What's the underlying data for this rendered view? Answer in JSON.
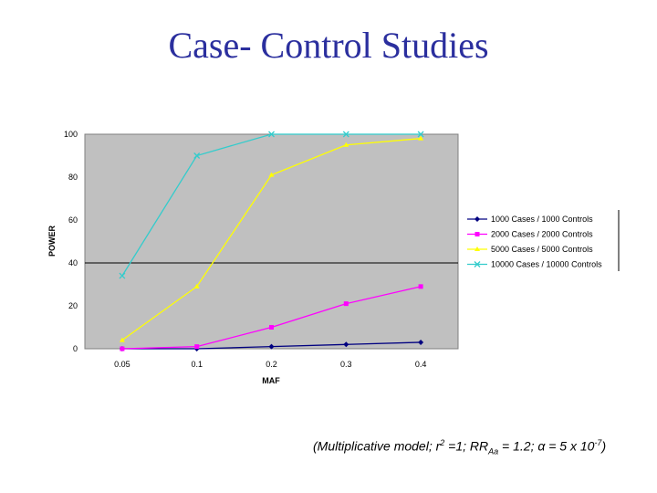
{
  "slide": {
    "title": "Case- Control Studies"
  },
  "footnote": {
    "prefix": "(Multiplicative model; r",
    "r_exp": "2",
    "mid": " =1; RR",
    "rr_sub": "Aa",
    "rest": " = 1.2; α = 5 x 10",
    "alpha_exp": "-7",
    "suffix": ")"
  },
  "chart_data": {
    "type": "line",
    "title": "",
    "xlabel": "MAF",
    "ylabel": "POWER",
    "categories": [
      "0.05",
      "0.1",
      "0.2",
      "0.3",
      "0.4"
    ],
    "ylim": [
      0,
      100
    ],
    "yticks": [
      0,
      20,
      40,
      60,
      80,
      100
    ],
    "grid": "horizontal at 40",
    "plot_background": "#c0c0c0",
    "legend_position": "right",
    "series": [
      {
        "name": "1000 Cases / 1000 Controls",
        "values": [
          0,
          0,
          1,
          2,
          3
        ],
        "color": "#000080",
        "marker": "diamond"
      },
      {
        "name": "2000 Cases / 2000 Controls",
        "values": [
          0,
          1,
          10,
          21,
          29
        ],
        "color": "#ff00ff",
        "marker": "square"
      },
      {
        "name": "5000 Cases / 5000 Controls",
        "values": [
          4,
          29,
          81,
          95,
          98
        ],
        "color": "#ffff00",
        "marker": "triangle"
      },
      {
        "name": "10000 Cases / 10000 Controls",
        "values": [
          34,
          90,
          100,
          100,
          100
        ],
        "color": "#33cccc",
        "marker": "x"
      }
    ]
  }
}
